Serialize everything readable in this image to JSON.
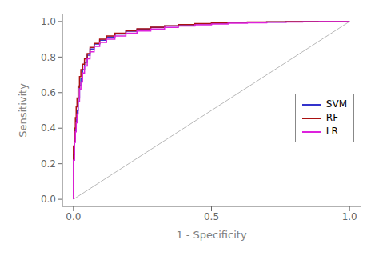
{
  "chart_data": {
    "type": "line",
    "xlabel": "1 - Specificity",
    "ylabel": "Sensitivity",
    "xlim": [
      -0.04,
      1.04
    ],
    "ylim": [
      -0.04,
      1.04
    ],
    "xticks": [
      {
        "value": 0.0,
        "label": "0.0"
      },
      0.5,
      {
        "value": 1.0,
        "label": "1.0"
      }
    ],
    "yticks": [
      {
        "value": 0.0,
        "label": "0.0"
      },
      0.2,
      0.4,
      0.6,
      0.8,
      {
        "value": 1.0,
        "label": "1.0"
      }
    ],
    "grid": false,
    "legend": "right",
    "x": [
      0.0,
      0.0,
      0.004,
      0.004,
      0.007,
      0.007,
      0.01,
      0.01,
      0.013,
      0.013,
      0.017,
      0.017,
      0.022,
      0.022,
      0.027,
      0.027,
      0.033,
      0.033,
      0.04,
      0.04,
      0.05,
      0.05,
      0.06,
      0.06,
      0.075,
      0.075,
      0.095,
      0.095,
      0.12,
      0.12,
      0.15,
      0.15,
      0.19,
      0.19,
      0.23,
      0.23,
      0.28,
      0.28,
      0.33,
      0.33,
      0.38,
      0.38,
      0.44,
      0.44,
      0.5,
      0.5,
      0.56,
      0.56,
      0.63,
      0.63,
      0.7,
      0.7,
      0.77,
      0.77,
      0.83,
      0.83,
      0.89,
      0.89,
      0.94,
      0.94,
      1.0
    ],
    "series": [
      {
        "x": [
          0,
          1
        ],
        "values": [
          0,
          1
        ],
        "color": "#b0b0b0"
      },
      {
        "name": "SVM",
        "color": "#3333cc",
        "values": [
          0.0,
          0.25,
          0.25,
          0.34,
          0.34,
          0.4,
          0.4,
          0.45,
          0.45,
          0.5,
          0.5,
          0.57,
          0.57,
          0.64,
          0.64,
          0.68,
          0.68,
          0.73,
          0.73,
          0.77,
          0.77,
          0.81,
          0.81,
          0.845,
          0.845,
          0.873,
          0.873,
          0.895,
          0.895,
          0.913,
          0.913,
          0.93,
          0.93,
          0.945,
          0.945,
          0.957,
          0.957,
          0.967,
          0.967,
          0.975,
          0.975,
          0.982,
          0.982,
          0.987,
          0.987,
          0.991,
          0.991,
          0.994,
          0.994,
          0.996,
          0.996,
          0.997,
          0.997,
          0.998,
          0.998,
          0.999,
          0.999,
          1.0,
          1.0,
          1.0,
          1.0
        ]
      },
      {
        "name": "RF",
        "color": "#aa1111",
        "values": [
          0.0,
          0.3,
          0.3,
          0.4,
          0.4,
          0.46,
          0.46,
          0.52,
          0.52,
          0.57,
          0.57,
          0.63,
          0.63,
          0.69,
          0.69,
          0.73,
          0.73,
          0.76,
          0.76,
          0.79,
          0.79,
          0.82,
          0.82,
          0.854,
          0.854,
          0.877,
          0.877,
          0.9,
          0.9,
          0.918,
          0.918,
          0.934,
          0.934,
          0.948,
          0.948,
          0.959,
          0.959,
          0.968,
          0.968,
          0.976,
          0.976,
          0.983,
          0.983,
          0.988,
          0.988,
          0.992,
          0.992,
          0.995,
          0.995,
          0.997,
          0.997,
          0.998,
          0.998,
          0.999,
          0.999,
          1.0,
          1.0,
          1.0,
          1.0,
          1.0,
          1.0
        ]
      },
      {
        "name": "LR",
        "color": "#dd22dd",
        "values": [
          0.0,
          0.22,
          0.22,
          0.32,
          0.32,
          0.38,
          0.38,
          0.43,
          0.43,
          0.48,
          0.48,
          0.55,
          0.55,
          0.62,
          0.62,
          0.66,
          0.66,
          0.71,
          0.71,
          0.75,
          0.75,
          0.79,
          0.79,
          0.83,
          0.83,
          0.86,
          0.86,
          0.882,
          0.882,
          0.901,
          0.901,
          0.918,
          0.918,
          0.934,
          0.934,
          0.947,
          0.947,
          0.958,
          0.958,
          0.967,
          0.967,
          0.975,
          0.975,
          0.981,
          0.981,
          0.986,
          0.986,
          0.99,
          0.99,
          0.993,
          0.993,
          0.996,
          0.996,
          0.997,
          0.997,
          0.998,
          0.998,
          0.999,
          0.999,
          1.0,
          1.0
        ]
      }
    ]
  }
}
